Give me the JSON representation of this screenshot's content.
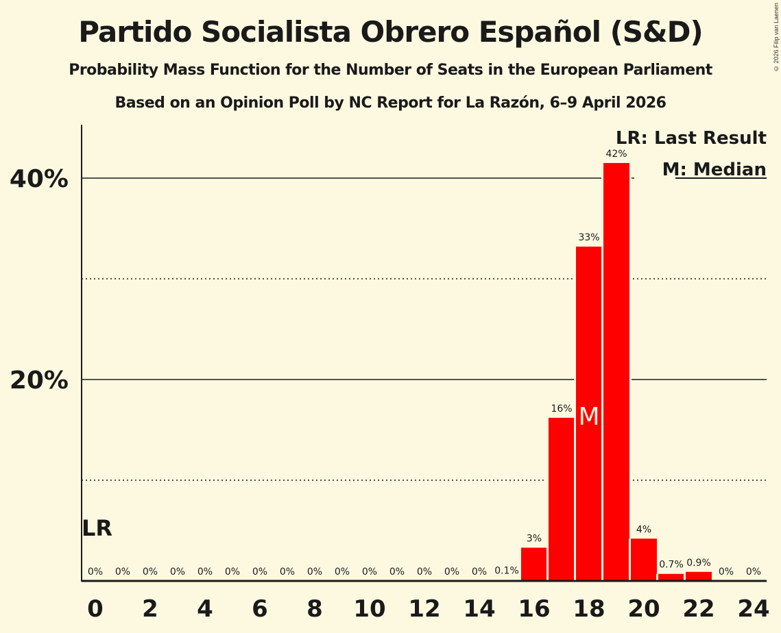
{
  "header": {
    "title": "Partido Socialista Obrero Español (S&D)",
    "subtitle": "Probability Mass Function for the Number of Seats in the European Parliament",
    "source": "Based on an Opinion Poll by NC Report for La Razón, 6–9 April 2026",
    "copyright": "© 2026 Filip van Laenen"
  },
  "legend": {
    "lr": "LR: Last Result",
    "median": "M: Median"
  },
  "markers": {
    "last_result_label": "LR",
    "last_result_seat": 0,
    "median_label": "M",
    "median_seat": 18
  },
  "colors": {
    "background": "#fdf9e1",
    "bar": "#ff0000",
    "text": "#1a1a1a"
  },
  "chart_data": {
    "type": "bar",
    "title": "Partido Socialista Obrero Español (S&D)",
    "subtitle": "Probability Mass Function for the Number of Seats in the European Parliament",
    "xlabel": "",
    "ylabel": "",
    "categories": [
      0,
      1,
      2,
      3,
      4,
      5,
      6,
      7,
      8,
      9,
      10,
      11,
      12,
      13,
      14,
      15,
      16,
      17,
      18,
      19,
      20,
      21,
      22,
      23,
      24
    ],
    "values": [
      0,
      0,
      0,
      0,
      0,
      0,
      0,
      0,
      0,
      0,
      0,
      0,
      0,
      0,
      0,
      0.1,
      3.3,
      16.2,
      33.2,
      41.5,
      4.2,
      0.7,
      0.9,
      0,
      0
    ],
    "value_labels": [
      "0%",
      "0%",
      "0%",
      "0%",
      "0%",
      "0%",
      "0%",
      "0%",
      "0%",
      "0%",
      "0%",
      "0%",
      "0%",
      "0%",
      "0%",
      "0.1%",
      "3%",
      "16%",
      "33%",
      "42%",
      "4%",
      "0.7%",
      "0.9%",
      "0%",
      "0%"
    ],
    "x_tick_labels": [
      "0",
      "2",
      "4",
      "6",
      "8",
      "10",
      "12",
      "14",
      "16",
      "18",
      "20",
      "22",
      "24"
    ],
    "y_tick_labels": [
      "20%",
      "40%"
    ],
    "ylim": [
      0,
      45
    ],
    "grid": {
      "solid": [
        20,
        40
      ],
      "dotted": [
        10,
        30
      ]
    },
    "legend_position": "top-right"
  }
}
